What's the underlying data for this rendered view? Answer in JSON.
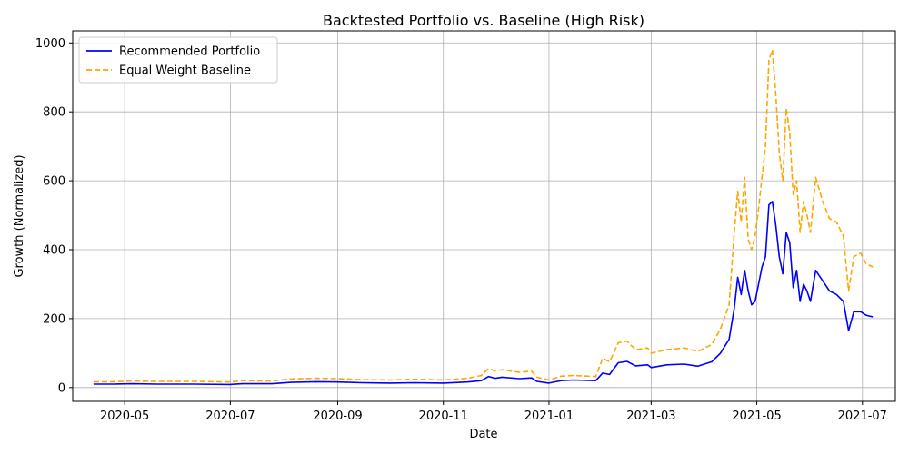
{
  "chart_data": {
    "type": "line",
    "title": "Backtested Portfolio vs. Baseline (High Risk)",
    "xlabel": "Date",
    "ylabel": "Growth (Normalized)",
    "xlim": [
      "2020-04-01",
      "2021-07-20"
    ],
    "ylim": [
      -40,
      1035
    ],
    "x_ticks": [
      {
        "date": "2020-05-01",
        "label": "2020-05"
      },
      {
        "date": "2020-07-01",
        "label": "2020-07"
      },
      {
        "date": "2020-09-01",
        "label": "2020-09"
      },
      {
        "date": "2020-11-01",
        "label": "2020-11"
      },
      {
        "date": "2021-01-01",
        "label": "2021-01"
      },
      {
        "date": "2021-03-01",
        "label": "2021-03"
      },
      {
        "date": "2021-05-01",
        "label": "2021-05"
      },
      {
        "date": "2021-07-01",
        "label": "2021-07"
      }
    ],
    "y_ticks": [
      0,
      200,
      400,
      600,
      800,
      1000
    ],
    "grid": true,
    "legend_position": "top-left",
    "series": [
      {
        "name": "Recommended Portfolio",
        "color": "#0000ff",
        "style": "solid",
        "points": [
          [
            "2020-04-13",
            10
          ],
          [
            "2020-04-25",
            10
          ],
          [
            "2020-05-05",
            11
          ],
          [
            "2020-05-20",
            10
          ],
          [
            "2020-06-10",
            10
          ],
          [
            "2020-07-01",
            9
          ],
          [
            "2020-07-08",
            11
          ],
          [
            "2020-07-25",
            11
          ],
          [
            "2020-08-05",
            15
          ],
          [
            "2020-08-20",
            17
          ],
          [
            "2020-09-01",
            16
          ],
          [
            "2020-09-15",
            14
          ],
          [
            "2020-10-01",
            13
          ],
          [
            "2020-10-15",
            14
          ],
          [
            "2020-11-01",
            13
          ],
          [
            "2020-11-15",
            16
          ],
          [
            "2020-11-23",
            20
          ],
          [
            "2020-11-27",
            32
          ],
          [
            "2020-12-01",
            27
          ],
          [
            "2020-12-05",
            30
          ],
          [
            "2020-12-15",
            26
          ],
          [
            "2020-12-22",
            28
          ],
          [
            "2020-12-25",
            18
          ],
          [
            "2021-01-01",
            13
          ],
          [
            "2021-01-08",
            20
          ],
          [
            "2021-01-15",
            22
          ],
          [
            "2021-01-28",
            20
          ],
          [
            "2021-02-01",
            42
          ],
          [
            "2021-02-05",
            38
          ],
          [
            "2021-02-10",
            72
          ],
          [
            "2021-02-15",
            76
          ],
          [
            "2021-02-20",
            63
          ],
          [
            "2021-02-27",
            66
          ],
          [
            "2021-03-01",
            58
          ],
          [
            "2021-03-10",
            66
          ],
          [
            "2021-03-20",
            68
          ],
          [
            "2021-03-28",
            62
          ],
          [
            "2021-04-05",
            75
          ],
          [
            "2021-04-10",
            100
          ],
          [
            "2021-04-15",
            140
          ],
          [
            "2021-04-18",
            230
          ],
          [
            "2021-04-20",
            320
          ],
          [
            "2021-04-22",
            270
          ],
          [
            "2021-04-24",
            340
          ],
          [
            "2021-04-26",
            280
          ],
          [
            "2021-04-28",
            240
          ],
          [
            "2021-04-30",
            250
          ],
          [
            "2021-05-02",
            300
          ],
          [
            "2021-05-04",
            350
          ],
          [
            "2021-05-06",
            380
          ],
          [
            "2021-05-08",
            530
          ],
          [
            "2021-05-10",
            540
          ],
          [
            "2021-05-12",
            470
          ],
          [
            "2021-05-14",
            380
          ],
          [
            "2021-05-16",
            330
          ],
          [
            "2021-05-18",
            450
          ],
          [
            "2021-05-20",
            420
          ],
          [
            "2021-05-22",
            290
          ],
          [
            "2021-05-24",
            340
          ],
          [
            "2021-05-26",
            250
          ],
          [
            "2021-05-28",
            300
          ],
          [
            "2021-05-30",
            280
          ],
          [
            "2021-06-01",
            250
          ],
          [
            "2021-06-04",
            340
          ],
          [
            "2021-06-08",
            310
          ],
          [
            "2021-06-12",
            280
          ],
          [
            "2021-06-16",
            270
          ],
          [
            "2021-06-20",
            250
          ],
          [
            "2021-06-23",
            165
          ],
          [
            "2021-06-26",
            220
          ],
          [
            "2021-06-30",
            220
          ],
          [
            "2021-07-03",
            210
          ],
          [
            "2021-07-07",
            205
          ]
        ]
      },
      {
        "name": "Equal Weight Baseline",
        "color": "#ffa500",
        "style": "dashed",
        "points": [
          [
            "2020-04-13",
            17
          ],
          [
            "2020-04-25",
            17
          ],
          [
            "2020-05-05",
            19
          ],
          [
            "2020-05-20",
            18
          ],
          [
            "2020-06-10",
            18
          ],
          [
            "2020-07-01",
            16
          ],
          [
            "2020-07-08",
            20
          ],
          [
            "2020-07-25",
            19
          ],
          [
            "2020-08-05",
            25
          ],
          [
            "2020-08-20",
            27
          ],
          [
            "2020-09-01",
            26
          ],
          [
            "2020-09-15",
            23
          ],
          [
            "2020-10-01",
            22
          ],
          [
            "2020-10-15",
            24
          ],
          [
            "2020-11-01",
            22
          ],
          [
            "2020-11-15",
            27
          ],
          [
            "2020-11-23",
            35
          ],
          [
            "2020-11-27",
            55
          ],
          [
            "2020-12-01",
            48
          ],
          [
            "2020-12-05",
            52
          ],
          [
            "2020-12-15",
            44
          ],
          [
            "2020-12-22",
            48
          ],
          [
            "2020-12-25",
            30
          ],
          [
            "2021-01-01",
            22
          ],
          [
            "2021-01-08",
            33
          ],
          [
            "2021-01-15",
            35
          ],
          [
            "2021-01-28",
            32
          ],
          [
            "2021-02-01",
            85
          ],
          [
            "2021-02-05",
            75
          ],
          [
            "2021-02-10",
            130
          ],
          [
            "2021-02-15",
            135
          ],
          [
            "2021-02-20",
            110
          ],
          [
            "2021-02-27",
            115
          ],
          [
            "2021-03-01",
            100
          ],
          [
            "2021-03-10",
            110
          ],
          [
            "2021-03-20",
            115
          ],
          [
            "2021-03-28",
            105
          ],
          [
            "2021-04-05",
            125
          ],
          [
            "2021-04-10",
            170
          ],
          [
            "2021-04-15",
            240
          ],
          [
            "2021-04-18",
            450
          ],
          [
            "2021-04-20",
            570
          ],
          [
            "2021-04-22",
            480
          ],
          [
            "2021-04-24",
            610
          ],
          [
            "2021-04-26",
            430
          ],
          [
            "2021-04-28",
            400
          ],
          [
            "2021-04-30",
            440
          ],
          [
            "2021-05-02",
            520
          ],
          [
            "2021-05-04",
            610
          ],
          [
            "2021-05-06",
            700
          ],
          [
            "2021-05-08",
            950
          ],
          [
            "2021-05-10",
            980
          ],
          [
            "2021-05-12",
            850
          ],
          [
            "2021-05-14",
            680
          ],
          [
            "2021-05-16",
            600
          ],
          [
            "2021-05-18",
            810
          ],
          [
            "2021-05-20",
            740
          ],
          [
            "2021-05-22",
            560
          ],
          [
            "2021-05-24",
            600
          ],
          [
            "2021-05-26",
            450
          ],
          [
            "2021-05-28",
            540
          ],
          [
            "2021-05-30",
            500
          ],
          [
            "2021-06-01",
            450
          ],
          [
            "2021-06-04",
            610
          ],
          [
            "2021-06-08",
            540
          ],
          [
            "2021-06-12",
            490
          ],
          [
            "2021-06-16",
            480
          ],
          [
            "2021-06-20",
            440
          ],
          [
            "2021-06-23",
            280
          ],
          [
            "2021-06-26",
            380
          ],
          [
            "2021-06-30",
            390
          ],
          [
            "2021-07-03",
            360
          ],
          [
            "2021-07-07",
            350
          ]
        ]
      }
    ]
  }
}
